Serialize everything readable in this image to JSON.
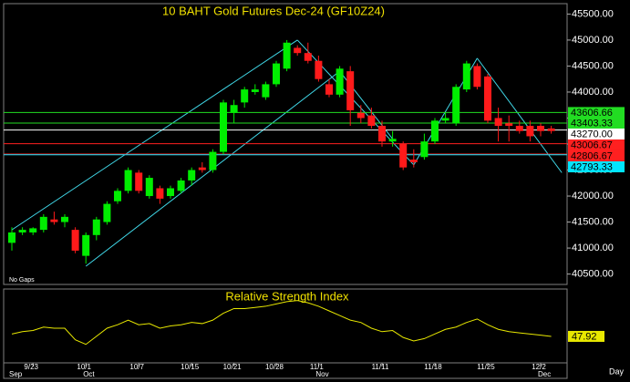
{
  "chart_data": {
    "type": "candlestick",
    "title": "10 BAHT  Gold Futures Dec-24  (GF10Z24)",
    "note": "No Gaps",
    "x_unit_label": "Day",
    "categories": [
      null,
      null,
      "9/23",
      null,
      null,
      null,
      null,
      "10/1",
      null,
      null,
      null,
      null,
      "10/7",
      null,
      null,
      null,
      null,
      "10/15",
      null,
      null,
      null,
      "10/21",
      null,
      null,
      null,
      "10/28",
      null,
      null,
      null,
      "11/1",
      null,
      null,
      null,
      null,
      null,
      "11/11",
      null,
      null,
      null,
      null,
      "11/18",
      null,
      null,
      null,
      null,
      "11/25",
      null,
      null,
      null,
      null,
      "12/2",
      null
    ],
    "months": [
      "Sep",
      null,
      null,
      null,
      null,
      null,
      null,
      "Oct",
      null,
      null,
      null,
      null,
      null,
      null,
      null,
      null,
      null,
      null,
      null,
      null,
      null,
      null,
      null,
      null,
      null,
      null,
      null,
      null,
      null,
      "Nov",
      null,
      null,
      null,
      null,
      null,
      null,
      null,
      null,
      null,
      null,
      null,
      null,
      null,
      null,
      null,
      null,
      null,
      null,
      null,
      null,
      "Dec",
      null
    ],
    "up_color": "#00ee00",
    "down_color": "#ff1a1a",
    "open": [
      41100,
      41300,
      41300,
      41350,
      41550,
      41500,
      41350,
      40850,
      41250,
      41500,
      41900,
      42100,
      42450,
      42000,
      42150,
      42000,
      42100,
      42300,
      42550,
      42500,
      42850,
      43600,
      43800,
      44000,
      43900,
      44150,
      44450,
      44850,
      44750,
      44600,
      44150,
      43950,
      44400,
      43600,
      43550,
      43350,
      43050,
      43000,
      42700,
      42750,
      43050,
      43450,
      43400,
      44050,
      44500,
      44300,
      43500,
      43400,
      43350,
      43350,
      43350,
      43300
    ],
    "high": [
      41400,
      41400,
      41400,
      41650,
      41700,
      41650,
      41400,
      41300,
      41600,
      41900,
      42150,
      42550,
      42500,
      42400,
      42200,
      42200,
      42350,
      42550,
      42650,
      42900,
      43850,
      43850,
      44100,
      44150,
      44200,
      44600,
      45000,
      44900,
      44950,
      44700,
      44250,
      44500,
      44500,
      43750,
      43700,
      43450,
      43250,
      43050,
      42900,
      43200,
      43500,
      43600,
      44150,
      44600,
      44550,
      44350,
      43700,
      43550,
      43450,
      43450,
      43400,
      43350
    ],
    "low": [
      40950,
      41250,
      41250,
      41300,
      41450,
      41400,
      40900,
      40700,
      41150,
      41450,
      41850,
      42050,
      42050,
      41950,
      41850,
      41950,
      42050,
      42200,
      42450,
      42450,
      42800,
      43400,
      43700,
      43950,
      43850,
      44100,
      44400,
      44700,
      44550,
      44200,
      43900,
      43900,
      43350,
      43400,
      43300,
      42950,
      42950,
      42500,
      42550,
      42700,
      43000,
      43400,
      43350,
      44000,
      44050,
      43400,
      43050,
      43050,
      43200,
      43050,
      43150,
      43200
    ],
    "close": [
      41300,
      41350,
      41380,
      41600,
      41500,
      41600,
      40950,
      41250,
      41550,
      41850,
      42100,
      42500,
      42100,
      42350,
      41950,
      42150,
      42300,
      42500,
      42500,
      42850,
      43800,
      43750,
      44050,
      44050,
      44150,
      44550,
      44950,
      44750,
      44600,
      44250,
      43950,
      44450,
      43650,
      43500,
      43350,
      43050,
      43100,
      42550,
      42650,
      43050,
      43450,
      43500,
      44100,
      44550,
      44100,
      43450,
      43350,
      43350,
      43250,
      43150,
      43250,
      43250
    ],
    "ylim": [
      40300,
      45700
    ],
    "yticks": [
      {
        "value": 40500,
        "label": "40500.00"
      },
      {
        "value": 41000,
        "label": "41000.00"
      },
      {
        "value": 41500,
        "label": "41500.00"
      },
      {
        "value": 42000,
        "label": "42000.00"
      },
      {
        "value": 42500,
        "label": "42500.00"
      },
      {
        "value": 43000,
        "label": "43000.00"
      },
      {
        "value": 43500,
        "label": "43500.00"
      },
      {
        "value": 44000,
        "label": "44000.00"
      },
      {
        "value": 44500,
        "label": "44500.00"
      },
      {
        "value": 45000,
        "label": "45000.00"
      },
      {
        "value": 45500,
        "label": "45500.00"
      }
    ],
    "levels": [
      {
        "value": 43606.66,
        "color": "#22dd22"
      },
      {
        "value": 43403.33,
        "color": "#22dd22"
      },
      {
        "value": 43270,
        "label": "43270.00",
        "color": "#ffffff"
      },
      {
        "value": 43006.67,
        "color": "#ff2020"
      },
      {
        "value": 42806.67,
        "color": "#ff2020"
      },
      {
        "value": 42793.33,
        "color": "#00e5ff"
      }
    ],
    "trendline_color": "#40d8e8",
    "trendlines": [
      {
        "x": [
          0,
          27
        ],
        "y": [
          41350,
          45000
        ]
      },
      {
        "x": [
          7,
          31
        ],
        "y": [
          40650,
          44400
        ]
      },
      {
        "x": [
          27,
          38
        ],
        "y": [
          45000,
          42600
        ]
      },
      {
        "x": [
          31,
          36
        ],
        "y": [
          44400,
          43100
        ]
      },
      {
        "x": [
          38,
          44
        ],
        "y": [
          42600,
          44650
        ]
      },
      {
        "x": [
          44,
          52
        ],
        "y": [
          44650,
          42450
        ]
      }
    ],
    "rsi": {
      "title": "Relative Strength Index",
      "color": "#e8e800",
      "ylim": [
        25,
        85
      ],
      "values": [
        50,
        52,
        53,
        56,
        55,
        55,
        45,
        41,
        48,
        55,
        58,
        62,
        58,
        59,
        55,
        57,
        58,
        60,
        59,
        62,
        68,
        72,
        72,
        73,
        74,
        76,
        78,
        79,
        77,
        74,
        70,
        66,
        62,
        60,
        55,
        52,
        53,
        47,
        44,
        46,
        50,
        54,
        56,
        60,
        63,
        58,
        54,
        52,
        51,
        50,
        49,
        47.92
      ]
    }
  }
}
